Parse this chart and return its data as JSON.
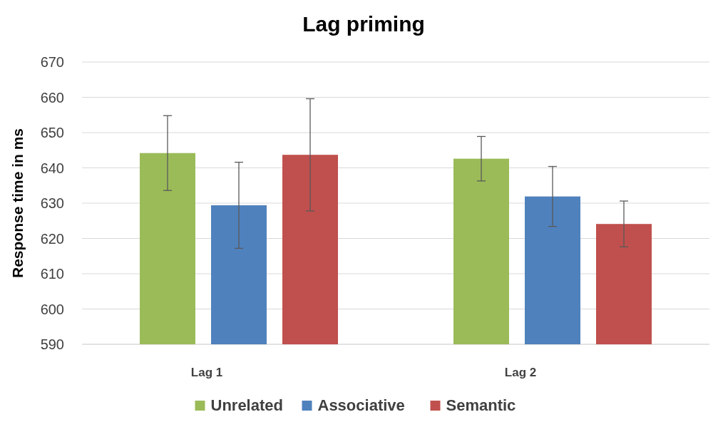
{
  "chart_data": {
    "type": "bar",
    "title": "Lag priming",
    "ylabel": "Response time in ms",
    "categories": [
      "Lag 1",
      "Lag 2"
    ],
    "series": [
      {
        "name": "Unrelated",
        "color": "#9bbb59",
        "values": [
          644.2,
          642.6
        ],
        "errors": [
          10.6,
          6.3
        ]
      },
      {
        "name": "Associative",
        "color": "#4f81bd",
        "values": [
          629.4,
          631.9
        ],
        "errors": [
          12.2,
          8.5
        ]
      },
      {
        "name": "Semantic",
        "color": "#c0504d",
        "values": [
          643.7,
          624.1
        ],
        "errors": [
          15.9,
          6.5
        ]
      }
    ],
    "ylim": [
      590,
      670
    ],
    "yticks": [
      590,
      600,
      610,
      620,
      630,
      640,
      650,
      660,
      670
    ],
    "grid": "y",
    "legend": "bottom"
  }
}
